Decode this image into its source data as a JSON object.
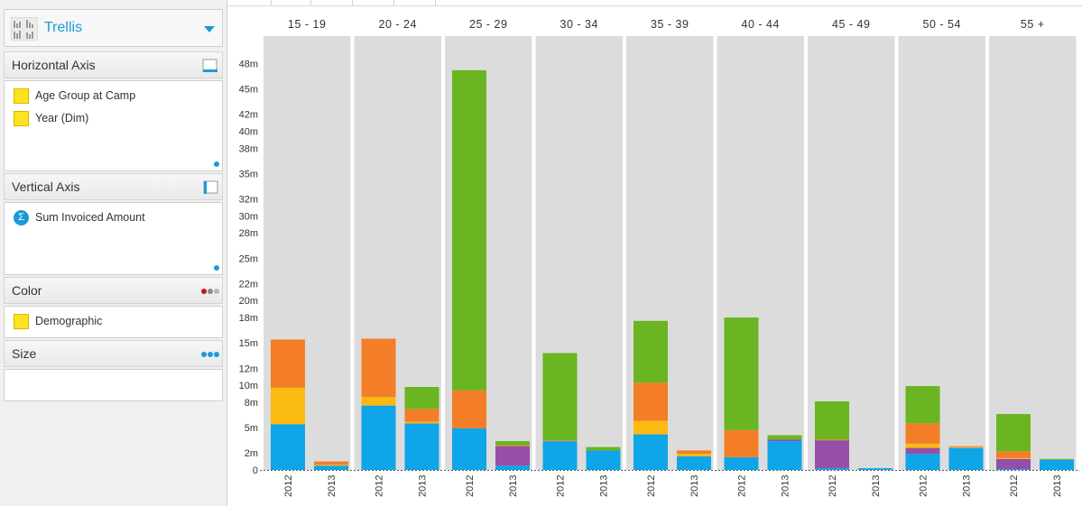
{
  "sidebar": {
    "chart_type": {
      "label": "Trellis",
      "icon": "trellis-chart-icon"
    },
    "sections": {
      "horizontal_axis": {
        "title": "Horizontal Axis",
        "fields": [
          "Age Group at Camp",
          "Year (Dim)"
        ]
      },
      "vertical_axis": {
        "title": "Vertical Axis",
        "fields": [
          "Sum Invoiced Amount"
        ]
      },
      "color": {
        "title": "Color",
        "fields": [
          "Demographic"
        ]
      },
      "size": {
        "title": "Size",
        "fields": []
      }
    }
  },
  "colors": {
    "blue": "#0ea5e9",
    "yellow": "#fbba12",
    "orange": "#f47e28",
    "green": "#6ab521",
    "purple": "#964fa8",
    "panel_bg": "#dcdcdc",
    "accent": "#1a9bd7"
  },
  "chart_data": {
    "type": "bar",
    "stacked": true,
    "categories": [
      "15 - 19",
      "20 - 24",
      "25 - 29",
      "30 - 34",
      "35 - 39",
      "40 - 44",
      "45 - 49",
      "50 - 54",
      "55 +"
    ],
    "sub_categories": [
      "2012",
      "2013"
    ],
    "series_colors": [
      "#0ea5e9",
      "#964fa8",
      "#fbba12",
      "#f47e28",
      "#6ab521"
    ],
    "series": [
      {
        "values": [
          [
            5.4,
            0.5
          ],
          [
            7.6,
            5.5
          ],
          [
            4.9,
            0.5
          ],
          [
            3.4,
            2.3
          ],
          [
            4.2,
            1.6
          ],
          [
            1.5,
            3.4
          ],
          [
            0.2,
            0.2
          ],
          [
            1.9,
            2.6
          ],
          [
            0.1,
            1.2
          ]
        ]
      },
      {
        "values": [
          [
            0,
            0
          ],
          [
            0,
            0
          ],
          [
            0,
            2.3
          ],
          [
            0,
            0
          ],
          [
            0,
            0
          ],
          [
            0,
            0.2
          ],
          [
            3.3,
            0
          ],
          [
            0.7,
            0
          ],
          [
            1.2,
            0
          ]
        ]
      },
      {
        "values": [
          [
            4.3,
            0.1
          ],
          [
            1.0,
            0.2
          ],
          [
            0,
            0
          ],
          [
            0,
            0
          ],
          [
            1.6,
            0.3
          ],
          [
            0,
            0
          ],
          [
            0,
            0
          ],
          [
            0.5,
            0.1
          ],
          [
            0.1,
            0
          ]
        ]
      },
      {
        "values": [
          [
            5.7,
            0.4
          ],
          [
            6.9,
            1.5
          ],
          [
            4.5,
            0.1
          ],
          [
            0.1,
            0
          ],
          [
            4.5,
            0.4
          ],
          [
            3.2,
            0
          ],
          [
            0.1,
            0
          ],
          [
            2.4,
            0.1
          ],
          [
            0.8,
            0
          ]
        ]
      },
      {
        "values": [
          [
            0,
            0
          ],
          [
            0,
            2.6
          ],
          [
            37.8,
            0.5
          ],
          [
            10.3,
            0.4
          ],
          [
            7.3,
            0
          ],
          [
            13.3,
            0.5
          ],
          [
            4.5,
            0
          ],
          [
            4.4,
            0
          ],
          [
            4.4,
            0.1
          ]
        ]
      }
    ],
    "yticks": [
      "0",
      "2m",
      "5m",
      "8m",
      "10m",
      "12m",
      "15m",
      "18m",
      "20m",
      "22m",
      "25m",
      "28m",
      "30m",
      "32m",
      "35m",
      "38m",
      "40m",
      "42m",
      "45m",
      "48m"
    ],
    "ylim": [
      0,
      49
    ],
    "grid": false,
    "legend": "none"
  }
}
